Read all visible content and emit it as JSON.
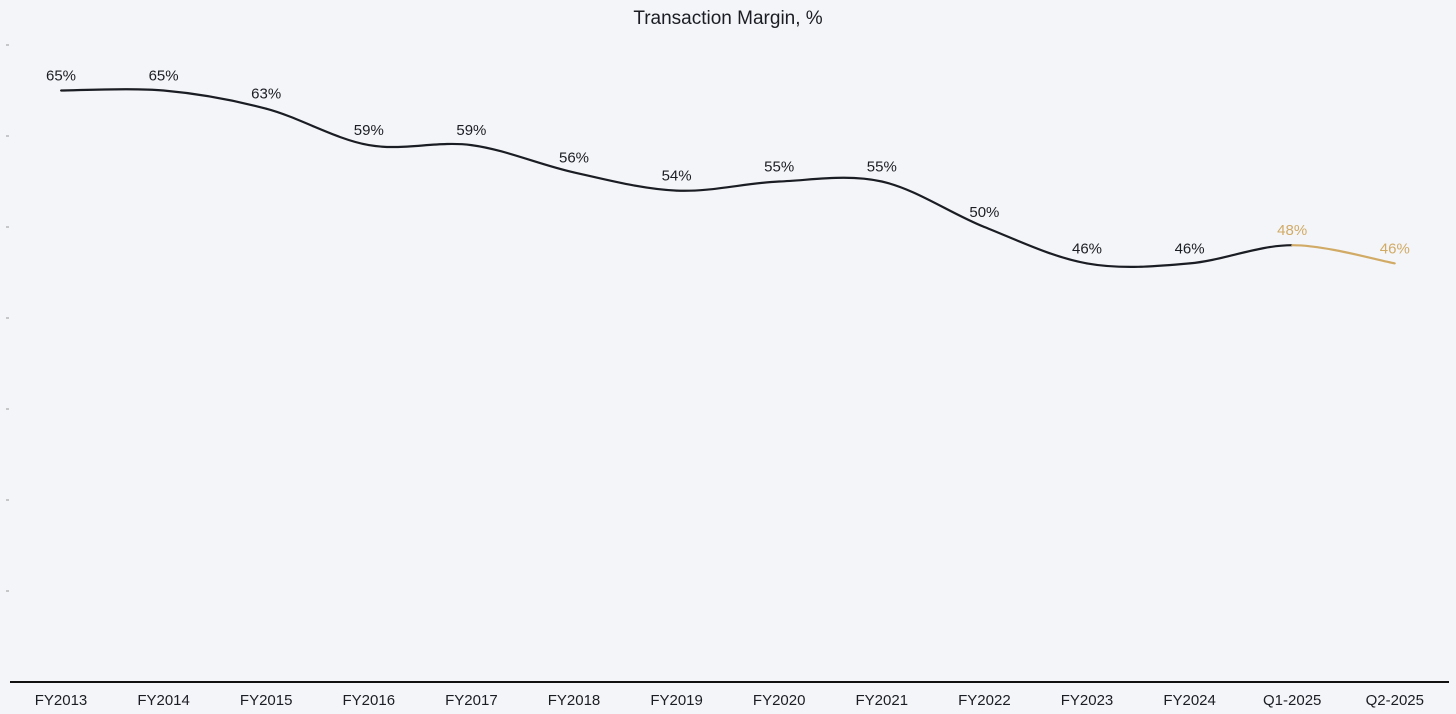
{
  "chart_data": {
    "type": "line",
    "title": "Transaction Margin, %",
    "xlabel": "",
    "ylabel": "",
    "categories": [
      "FY2013",
      "FY2014",
      "FY2015",
      "FY2016",
      "FY2017",
      "FY2018",
      "FY2019",
      "FY2020",
      "FY2021",
      "FY2022",
      "FY2023",
      "FY2024",
      "Q1-2025",
      "Q2-2025"
    ],
    "series": [
      {
        "name": "Transaction Margin",
        "values": [
          65,
          65,
          63,
          59,
          59,
          56,
          54,
          55,
          55,
          50,
          46,
          46,
          48,
          46
        ],
        "labels": [
          "65%",
          "65%",
          "63%",
          "59%",
          "59%",
          "56%",
          "54%",
          "55%",
          "55%",
          "50%",
          "46%",
          "46%",
          "48%",
          "46%"
        ],
        "highlight_from_index": 12
      }
    ],
    "ylim": [
      0,
      70
    ],
    "grid": false,
    "legend": "none",
    "colors": {
      "line": "#1b1d24",
      "highlight": "#d1ab66",
      "text": "#1b1d24",
      "background": "#f4f5f8",
      "axis": "#111111"
    }
  }
}
